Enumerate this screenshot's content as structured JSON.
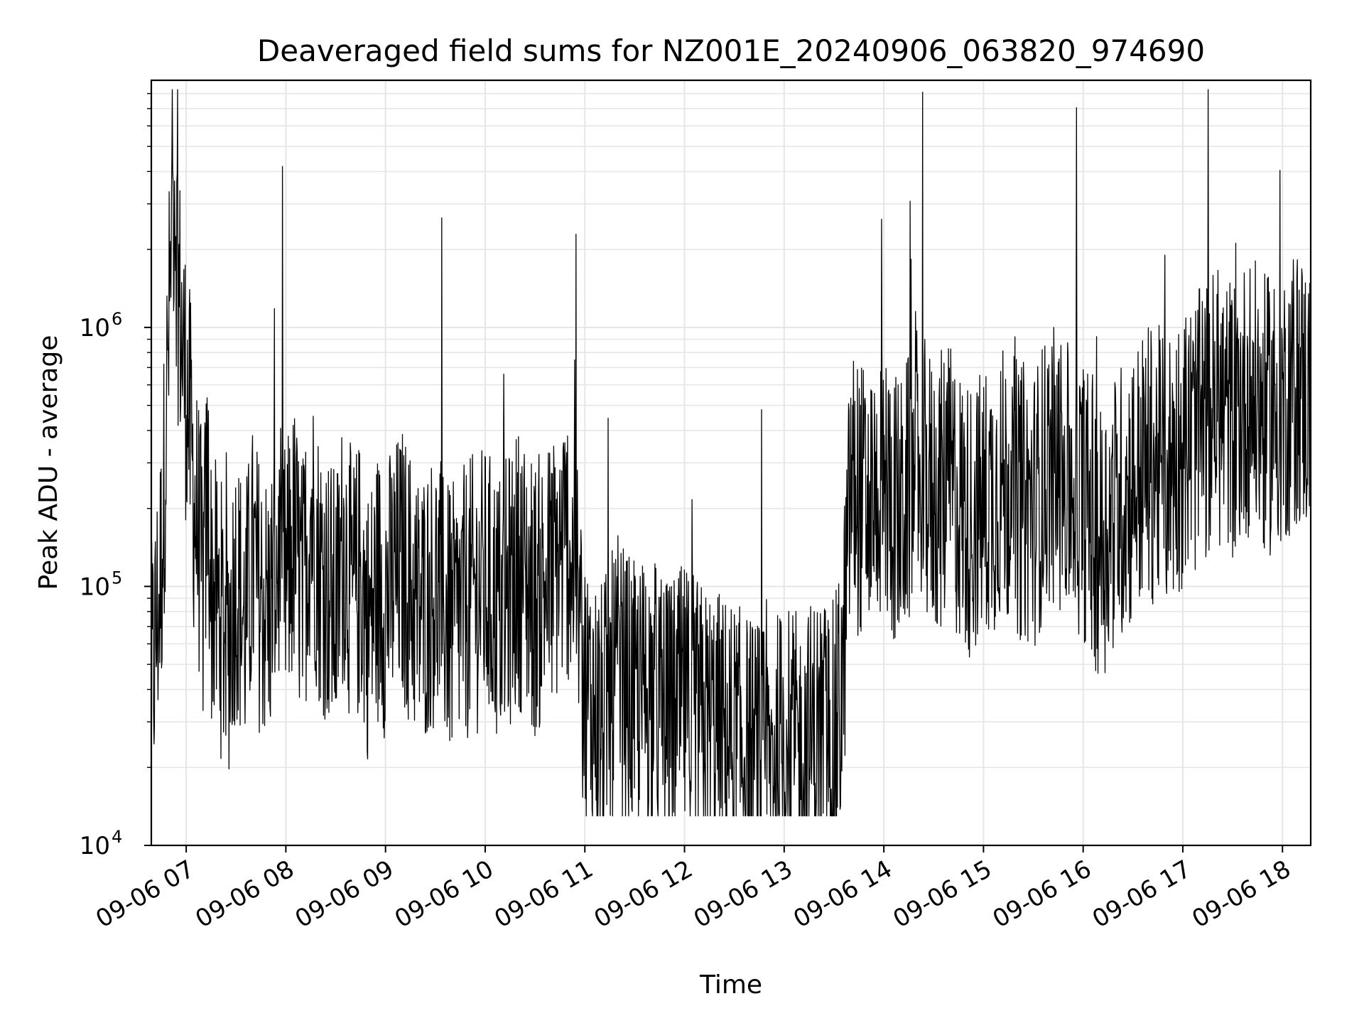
{
  "chart_data": {
    "type": "line",
    "title": "Deaveraged field sums for NZ001E_20240906_063820_974690",
    "xlabel": "Time",
    "ylabel": "Peak ADU - average",
    "y_scale": "log",
    "ylim": [
      10000,
      9000000
    ],
    "xlim": [
      "2024-09-06 06:39",
      "2024-09-06 18:17"
    ],
    "grid": true,
    "line_color": "#000000",
    "grid_color": "#e6e6e6",
    "x_ticks": [
      "2024-09-06 07:00",
      "2024-09-06 08:00",
      "2024-09-06 09:00",
      "2024-09-06 10:00",
      "2024-09-06 11:00",
      "2024-09-06 12:00",
      "2024-09-06 13:00",
      "2024-09-06 14:00",
      "2024-09-06 15:00",
      "2024-09-06 16:00",
      "2024-09-06 17:00",
      "2024-09-06 18:00"
    ],
    "x_tick_labels": [
      "09-06 07",
      "09-06 08",
      "09-06 09",
      "09-06 10",
      "09-06 11",
      "09-06 12",
      "09-06 13",
      "09-06 14",
      "09-06 15",
      "09-06 16",
      "09-06 17",
      "09-06 18"
    ],
    "y_ticks": [
      10000,
      100000,
      1000000
    ],
    "y_tick_labels": [
      {
        "base": "10",
        "exp": "4"
      },
      {
        "base": "10",
        "exp": "5"
      },
      {
        "base": "10",
        "exp": "6"
      }
    ],
    "series": [
      {
        "x": [
          "2024-09-06 06:39",
          "2024-09-06 06:45",
          "2024-09-06 06:48",
          "2024-09-06 06:50",
          "2024-09-06 06:53",
          "2024-09-06 06:55",
          "2024-09-06 06:58",
          "2024-09-06 07:00",
          "2024-09-06 07:03",
          "2024-09-06 07:05",
          "2024-09-06 07:08",
          "2024-09-06 07:10",
          "2024-09-06 07:13",
          "2024-09-06 07:15",
          "2024-09-06 07:20",
          "2024-09-06 07:25",
          "2024-09-06 07:30",
          "2024-09-06 07:35",
          "2024-09-06 07:40",
          "2024-09-06 07:45",
          "2024-09-06 07:50",
          "2024-09-06 07:55",
          "2024-09-06 08:00",
          "2024-09-06 08:05",
          "2024-09-06 08:10",
          "2024-09-06 08:15",
          "2024-09-06 08:20",
          "2024-09-06 08:25",
          "2024-09-06 08:30",
          "2024-09-06 08:35",
          "2024-09-06 08:40",
          "2024-09-06 08:45",
          "2024-09-06 08:50",
          "2024-09-06 08:55",
          "2024-09-06 09:00",
          "2024-09-06 09:10",
          "2024-09-06 09:20",
          "2024-09-06 09:30",
          "2024-09-06 09:40",
          "2024-09-06 09:50",
          "2024-09-06 10:00",
          "2024-09-06 10:10",
          "2024-09-06 10:20",
          "2024-09-06 10:30",
          "2024-09-06 10:40",
          "2024-09-06 10:50",
          "2024-09-06 10:55",
          "2024-09-06 11:00",
          "2024-09-06 11:10",
          "2024-09-06 11:20",
          "2024-09-06 11:30",
          "2024-09-06 11:40",
          "2024-09-06 11:50",
          "2024-09-06 12:00",
          "2024-09-06 12:10",
          "2024-09-06 12:20",
          "2024-09-06 12:30",
          "2024-09-06 12:40",
          "2024-09-06 12:50",
          "2024-09-06 13:00",
          "2024-09-06 13:10",
          "2024-09-06 13:20",
          "2024-09-06 13:30",
          "2024-09-06 13:35",
          "2024-09-06 13:40",
          "2024-09-06 13:50",
          "2024-09-06 14:00",
          "2024-09-06 14:10",
          "2024-09-06 14:20",
          "2024-09-06 14:30",
          "2024-09-06 14:40",
          "2024-09-06 14:50",
          "2024-09-06 15:00",
          "2024-09-06 15:10",
          "2024-09-06 15:20",
          "2024-09-06 15:30",
          "2024-09-06 15:40",
          "2024-09-06 15:50",
          "2024-09-06 16:00",
          "2024-09-06 16:10",
          "2024-09-06 16:20",
          "2024-09-06 16:30",
          "2024-09-06 16:40",
          "2024-09-06 16:50",
          "2024-09-06 17:00",
          "2024-09-06 17:10",
          "2024-09-06 17:20",
          "2024-09-06 17:30",
          "2024-09-06 17:40",
          "2024-09-06 17:50",
          "2024-09-06 18:00",
          "2024-09-06 18:10",
          "2024-09-06 18:17"
        ],
        "y": [
          40000,
          120000,
          450000,
          1200000,
          4200000,
          1500000,
          800000,
          600000,
          350000,
          200000,
          150000,
          90000,
          250000,
          100000,
          80000,
          60000,
          110000,
          70000,
          120000,
          90000,
          80000,
          130000,
          100000,
          150000,
          90000,
          200000,
          120000,
          100000,
          80000,
          150000,
          90000,
          110000,
          70000,
          100000,
          90000,
          120000,
          80000,
          100000,
          70000,
          90000,
          100000,
          80000,
          120000,
          90000,
          110000,
          150000,
          100000,
          40000,
          30000,
          45000,
          35000,
          40000,
          30000,
          35000,
          30000,
          28000,
          25000,
          22000,
          20000,
          25000,
          22000,
          28000,
          25000,
          40000,
          250000,
          200000,
          250000,
          180000,
          300000,
          220000,
          250000,
          180000,
          200000,
          250000,
          220000,
          200000,
          300000,
          250000,
          220000,
          150000,
          200000,
          250000,
          300000,
          280000,
          350000,
          400000,
          500000,
          450000,
          550000,
          450000,
          500000,
          600000,
          500000
        ]
      }
    ],
    "noise_amplitude_decades": 0.55
  }
}
